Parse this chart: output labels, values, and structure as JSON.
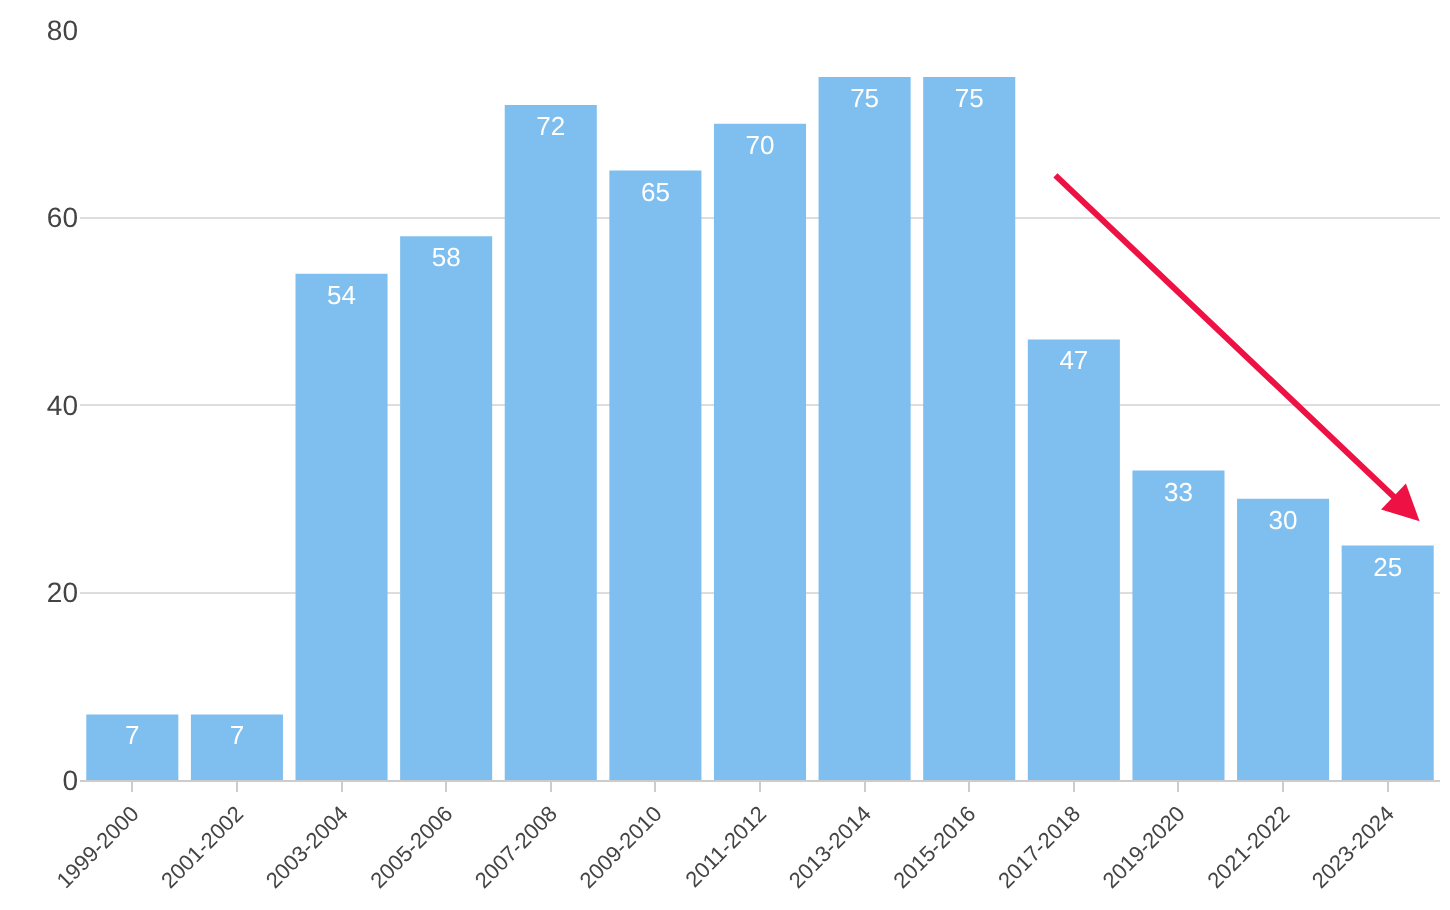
{
  "chart_data": {
    "type": "bar",
    "categories": [
      "1999-2000",
      "2001-2002",
      "2003-2004",
      "2005-2006",
      "2007-2008",
      "2009-2010",
      "2011-2012",
      "2013-2014",
      "2015-2016",
      "2017-2018",
      "2019-2020",
      "2021-2022",
      "2023-2024"
    ],
    "values": [
      7,
      7,
      54,
      58,
      72,
      65,
      70,
      75,
      75,
      47,
      33,
      30,
      25
    ],
    "color": "#7fbfef",
    "ylim": [
      0,
      80
    ],
    "yticks": [
      0,
      20,
      40,
      60,
      80
    ],
    "grid": "y",
    "data_labels": true
  }
}
